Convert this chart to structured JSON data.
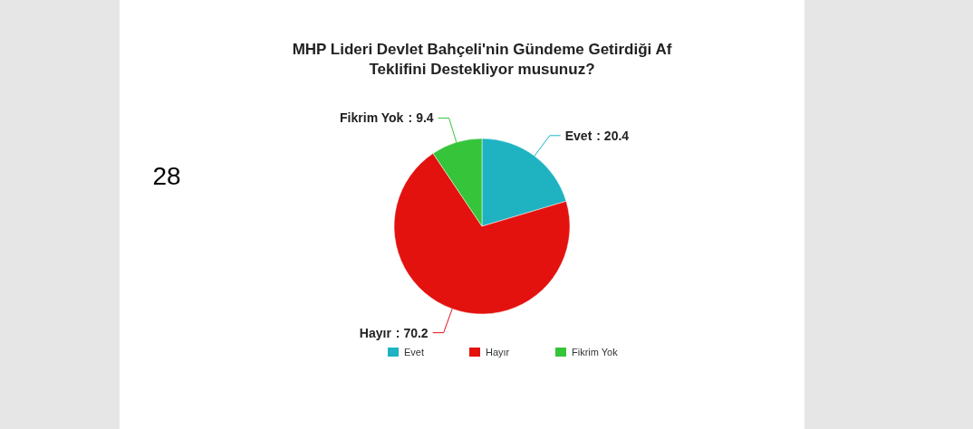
{
  "chart_data": {
    "type": "pie",
    "title": "MHP Lideri Devlet Bahçeli'nin Gündeme Getirdiği Af Teklifini Destekliyor musunuz?",
    "categories": [
      "Evet",
      "Hayır",
      "Fikrim Yok"
    ],
    "values": [
      20.4,
      70.2,
      9.4
    ],
    "value_labels": [
      ": 20.4",
      ": 70.2",
      ": 9.4"
    ],
    "colors": [
      "#1fb3c2",
      "#e3120f",
      "#36c43a"
    ],
    "legend": "bottom",
    "annotations": [
      "28"
    ]
  }
}
